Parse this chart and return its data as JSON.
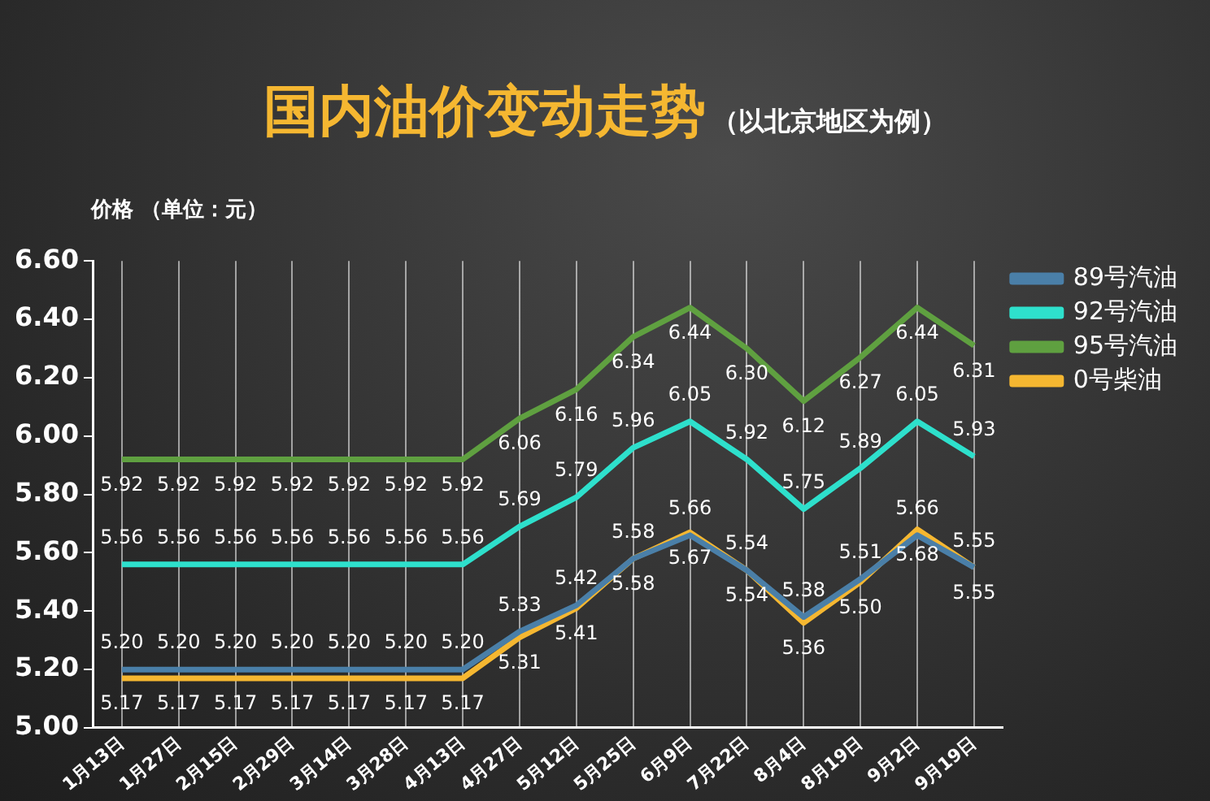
{
  "chart_data": {
    "type": "line",
    "title": "国内油价变动走势",
    "subtitle": "（以北京地区为例）",
    "ylabel": "价格 （单位：元）",
    "categories": [
      "1月13日",
      "1月27日",
      "2月15日",
      "2月29日",
      "3月14日",
      "3月28日",
      "4月13日",
      "4月27日",
      "5月12日",
      "5月25日",
      "6月9日",
      "7月22日",
      "8月4日",
      "8月19日",
      "9月2日",
      "9月19日"
    ],
    "series": [
      {
        "name": "89号汽油",
        "color": "#4a7fa8",
        "values": [
          5.2,
          5.2,
          5.2,
          5.2,
          5.2,
          5.2,
          5.2,
          5.33,
          5.42,
          5.58,
          5.66,
          5.54,
          5.38,
          5.51,
          5.66,
          5.55
        ],
        "value_labels": [
          "5.20",
          "5.20",
          "5.20",
          "5.20",
          "5.20",
          "5.20",
          "5.20",
          "5.33",
          "5.42",
          "5.58",
          "5.66",
          "5.54",
          "5.38",
          "5.51",
          "5.66",
          "5.55"
        ]
      },
      {
        "name": "92号汽油",
        "color": "#2ee0cc",
        "values": [
          5.56,
          5.56,
          5.56,
          5.56,
          5.56,
          5.56,
          5.56,
          5.69,
          5.79,
          5.96,
          6.05,
          5.92,
          5.75,
          5.89,
          6.05,
          5.93
        ],
        "value_labels": [
          "5.56",
          "5.56",
          "5.56",
          "5.56",
          "5.56",
          "5.56",
          "5.56",
          "5.69",
          "5.79",
          "5.96",
          "6.05",
          "5.92",
          "5.75",
          "5.89",
          "6.05",
          "5.93"
        ]
      },
      {
        "name": "95号汽油",
        "color": "#5fa040",
        "values": [
          5.92,
          5.92,
          5.92,
          5.92,
          5.92,
          5.92,
          5.92,
          6.06,
          6.16,
          6.34,
          6.44,
          6.3,
          6.12,
          6.27,
          6.44,
          6.31
        ],
        "value_labels": [
          "5.92",
          "5.92",
          "5.92",
          "5.92",
          "5.92",
          "5.92",
          "5.92",
          "6.06",
          "6.16",
          "6.34",
          "6.44",
          "6.30",
          "6.12",
          "6.27",
          "6.44",
          "6.31"
        ]
      },
      {
        "name": "0号柴油",
        "color": "#f5b731",
        "values": [
          5.17,
          5.17,
          5.17,
          5.17,
          5.17,
          5.17,
          5.17,
          5.31,
          5.41,
          5.58,
          5.67,
          5.54,
          5.36,
          5.5,
          5.68,
          5.55
        ],
        "value_labels": [
          "5.17",
          "5.17",
          "5.17",
          "5.17",
          "5.17",
          "5.17",
          "5.17",
          "5.31",
          "5.41",
          "5.58",
          "5.67",
          "5.54",
          "5.36",
          "5.50",
          "5.68",
          "5.55"
        ]
      }
    ],
    "ylim": [
      5,
      6.6
    ],
    "yticks": [
      {
        "value": 5,
        "label": "5.00"
      },
      {
        "value": 5.2,
        "label": "5.20"
      },
      {
        "value": 5.4,
        "label": "5.40"
      },
      {
        "value": 5.6,
        "label": "5.60"
      },
      {
        "value": 5.8,
        "label": "5.80"
      },
      {
        "value": 6,
        "label": "6.00"
      },
      {
        "value": 6.2,
        "label": "6.20"
      },
      {
        "value": 6.4,
        "label": "6.40"
      },
      {
        "value": 6.6,
        "label": "6.60"
      }
    ],
    "grid": "x",
    "legend": "right",
    "marker": "none",
    "line_style": "solid"
  }
}
